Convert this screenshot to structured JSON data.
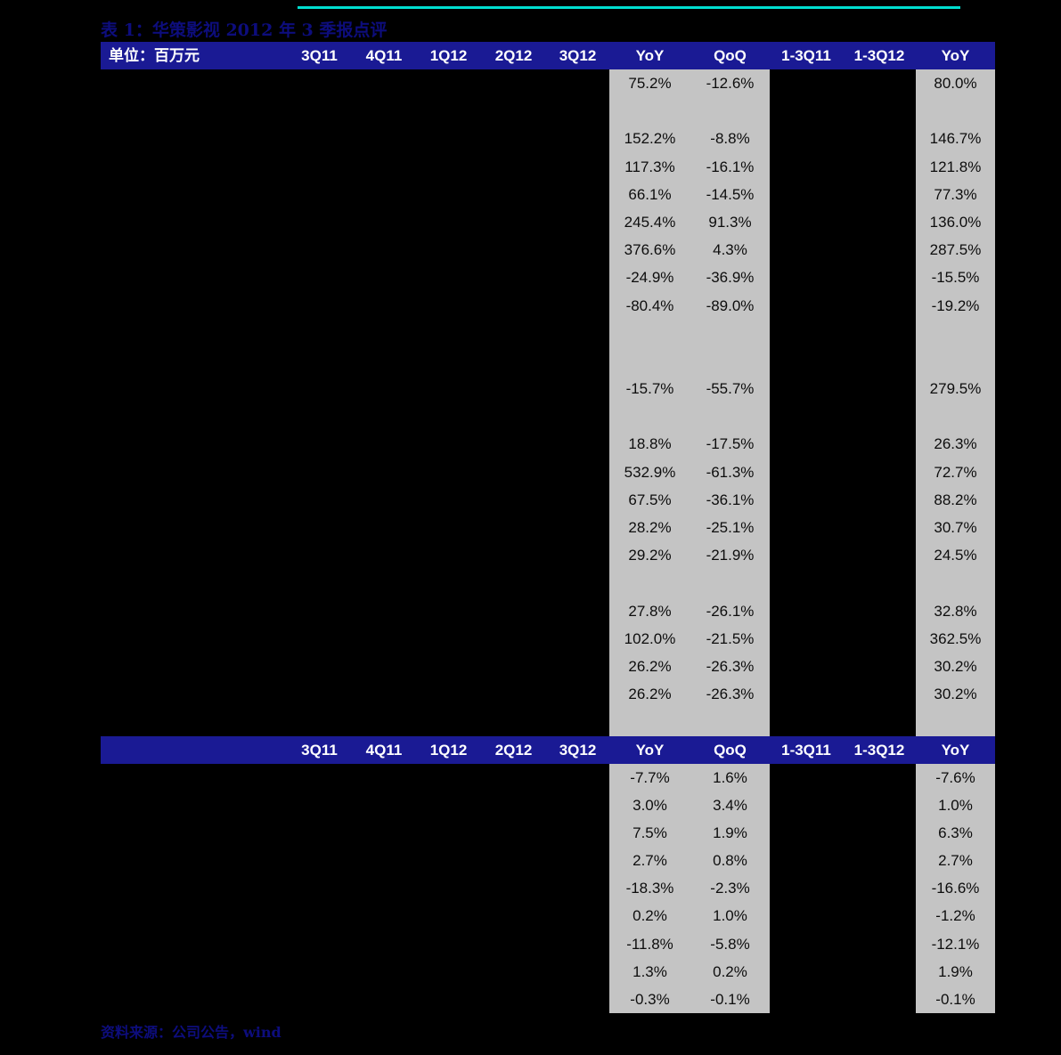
{
  "title": "表 1：华策影视 2012 年 3 季报点评",
  "source": "资料来源：公司公告，wind",
  "unit_label": "单位：百万元",
  "colors": {
    "background": "#000000",
    "header_bg": "#1a1a94",
    "shaded_column": "#c4c4c4",
    "title_text": "#0d0d7d",
    "header_text": "#ffffff",
    "top_line": "#00ddcf"
  },
  "table": {
    "header1": [
      "单位：百万元",
      "3Q11",
      "4Q11",
      "1Q12",
      "2Q12",
      "3Q12",
      "YoY",
      "QoQ",
      "1-3Q11",
      "1-3Q12",
      "YoY"
    ],
    "header2": [
      "",
      "3Q11",
      "4Q11",
      "1Q12",
      "2Q12",
      "3Q12",
      "YoY",
      "QoQ",
      "1-3Q11",
      "1-3Q12",
      "YoY"
    ],
    "section1_rows": [
      [
        "75.2%",
        "-12.6%",
        "80.0%"
      ],
      [
        "",
        "",
        ""
      ],
      [
        "152.2%",
        "-8.8%",
        "146.7%"
      ],
      [
        "117.3%",
        "-16.1%",
        "121.8%"
      ],
      [
        "66.1%",
        "-14.5%",
        "77.3%"
      ],
      [
        "245.4%",
        "91.3%",
        "136.0%"
      ],
      [
        "376.6%",
        "4.3%",
        "287.5%"
      ],
      [
        "-24.9%",
        "-36.9%",
        "-15.5%"
      ],
      [
        "-80.4%",
        "-89.0%",
        "-19.2%"
      ],
      [
        "",
        "",
        ""
      ],
      [
        "",
        "",
        ""
      ],
      [
        "-15.7%",
        "-55.7%",
        "279.5%"
      ],
      [
        "",
        "",
        ""
      ],
      [
        "18.8%",
        "-17.5%",
        "26.3%"
      ],
      [
        "532.9%",
        "-61.3%",
        "72.7%"
      ],
      [
        "67.5%",
        "-36.1%",
        "88.2%"
      ],
      [
        "28.2%",
        "-25.1%",
        "30.7%"
      ],
      [
        "29.2%",
        "-21.9%",
        "24.5%"
      ],
      [
        "",
        "",
        ""
      ],
      [
        "27.8%",
        "-26.1%",
        "32.8%"
      ],
      [
        "102.0%",
        "-21.5%",
        "362.5%"
      ],
      [
        "26.2%",
        "-26.3%",
        "30.2%"
      ],
      [
        "26.2%",
        "-26.3%",
        "30.2%"
      ],
      [
        "",
        "",
        ""
      ]
    ],
    "section2_rows": [
      [
        "-7.7%",
        "1.6%",
        "-7.6%"
      ],
      [
        "3.0%",
        "3.4%",
        "1.0%"
      ],
      [
        "7.5%",
        "1.9%",
        "6.3%"
      ],
      [
        "2.7%",
        "0.8%",
        "2.7%"
      ],
      [
        "-18.3%",
        "-2.3%",
        "-16.6%"
      ],
      [
        "0.2%",
        "1.0%",
        "-1.2%"
      ],
      [
        "-11.8%",
        "-5.8%",
        "-12.1%"
      ],
      [
        "1.3%",
        "0.2%",
        "1.9%"
      ],
      [
        "-0.3%",
        "-0.1%",
        "-0.1%"
      ]
    ]
  }
}
